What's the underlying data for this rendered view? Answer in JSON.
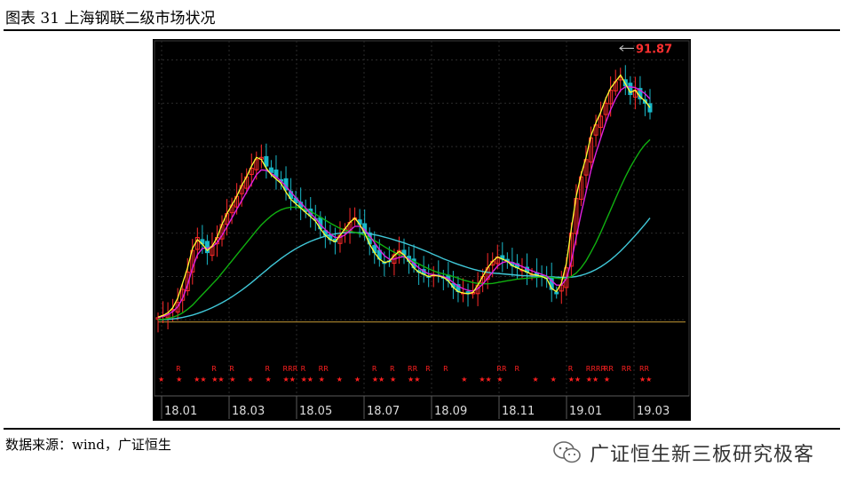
{
  "figure": {
    "label": "图表 31 上海钢联二级市场状况"
  },
  "source": {
    "text": "数据来源：wind，广证恒生"
  },
  "watermark": {
    "text": "广证恒生新三板研究极客",
    "icon": "wechat-icon"
  },
  "chart_data": {
    "type": "candlestick",
    "x_ticks": [
      "18.01",
      "18.03",
      "18.05",
      "18.07",
      "18.09",
      "18.11",
      "19.01",
      "19.03"
    ],
    "annotation": {
      "label": "91.87",
      "value": 91.87
    },
    "y_range": [
      28,
      94
    ],
    "background": "#000000",
    "colors": {
      "up": "#ff2a2a",
      "down": "#19b8c8",
      "ma_fast": "#ffff33",
      "ma_mid": "#e020e0",
      "ma_slow": "#10b010",
      "ma_long": "#40c8d8",
      "baseline": "#b08a30",
      "marker": "#ff2020"
    },
    "closes": [
      30.5,
      31.0,
      31.5,
      32.4,
      34.0,
      37.0,
      41.0,
      46.0,
      49.0,
      47.5,
      45.5,
      47.0,
      49.0,
      52.0,
      54.5,
      56.5,
      58.5,
      61.0,
      63.0,
      65.0,
      67.0,
      67.5,
      65.5,
      64.0,
      63.0,
      62.0,
      60.0,
      58.0,
      57.0,
      56.0,
      55.0,
      54.0,
      53.0,
      51.0,
      49.5,
      48.5,
      48.0,
      49.5,
      51.0,
      52.5,
      53.5,
      52.0,
      50.0,
      47.5,
      45.5,
      44.0,
      43.0,
      43.5,
      45.0,
      46.0,
      45.0,
      43.5,
      42.0,
      41.0,
      40.5,
      40.0,
      40.3,
      40.1,
      39.8,
      39.0,
      37.5,
      36.5,
      36.2,
      36.0,
      36.3,
      38.0,
      40.0,
      42.0,
      43.5,
      44.5,
      44.0,
      43.5,
      42.5,
      42.0,
      41.5,
      41.0,
      40.5,
      40.3,
      40.0,
      39.5,
      37.0,
      36.0,
      38.0,
      42.0,
      50.0,
      58.0,
      63.0,
      67.0,
      72.0,
      75.0,
      77.0,
      80.0,
      83.0,
      85.0,
      86.0,
      84.0,
      82.0,
      83.0,
      81.0,
      80.0,
      78.0
    ],
    "ma_fast": [
      30.6,
      31.0,
      31.6,
      32.8,
      35.0,
      38.5,
      42.0,
      46.5,
      48.5,
      47.5,
      46.0,
      47.0,
      49.0,
      52.0,
      54.5,
      56.5,
      58.5,
      61.0,
      63.0,
      65.5,
      67.5,
      67.0,
      65.0,
      63.5,
      62.5,
      61.5,
      59.5,
      57.8,
      56.8,
      55.8,
      54.8,
      53.8,
      52.8,
      51.0,
      49.5,
      48.5,
      48.0,
      49.5,
      51.0,
      52.5,
      53.5,
      52.0,
      50.0,
      47.5,
      45.5,
      44.0,
      43.2,
      43.5,
      44.8,
      45.8,
      45.0,
      43.5,
      42.0,
      41.0,
      40.5,
      40.0,
      40.3,
      40.1,
      39.8,
      39.0,
      37.5,
      36.5,
      36.2,
      36.0,
      36.3,
      38.0,
      40.0,
      42.0,
      43.5,
      44.5,
      44.0,
      43.5,
      42.5,
      42.0,
      41.5,
      41.0,
      40.5,
      40.3,
      40.0,
      39.5,
      37.2,
      36.5,
      38.5,
      43.0,
      51.0,
      58.5,
      63.5,
      67.5,
      72.5,
      75.5,
      78.0,
      81.0,
      83.5,
      85.0,
      86.5,
      84.5,
      82.5,
      83.0,
      81.5,
      80.5,
      79.0
    ],
    "ma_mid": [
      30.5,
      30.8,
      31.2,
      31.9,
      33.0,
      35.0,
      38.0,
      42.0,
      45.0,
      46.5,
      46.5,
      46.8,
      47.8,
      49.5,
      51.5,
      53.5,
      55.5,
      57.5,
      59.5,
      61.5,
      63.5,
      64.6,
      64.5,
      63.8,
      63.0,
      62.0,
      60.8,
      59.5,
      58.2,
      57.0,
      55.8,
      54.6,
      53.4,
      52.0,
      50.8,
      49.8,
      49.0,
      49.0,
      49.6,
      50.6,
      51.6,
      51.6,
      50.8,
      49.4,
      47.8,
      46.2,
      44.8,
      44.0,
      44.0,
      44.4,
      44.6,
      44.0,
      43.0,
      42.0,
      41.2,
      40.6,
      40.4,
      40.2,
      40.0,
      39.5,
      38.6,
      37.8,
      37.2,
      36.8,
      36.6,
      37.2,
      38.2,
      39.6,
      41.0,
      42.4,
      43.2,
      43.5,
      43.2,
      42.8,
      42.3,
      41.8,
      41.3,
      40.9,
      40.5,
      40.1,
      39.0,
      38.0,
      38.0,
      39.5,
      43.5,
      49.0,
      54.5,
      59.5,
      64.5,
      68.5,
      72.0,
      75.5,
      78.5,
      81.0,
      83.0,
      83.8,
      83.8,
      83.6,
      83.0,
      82.2,
      81.0
    ],
    "ma_slow": [
      30.0,
      30.1,
      30.3,
      30.6,
      31.0,
      31.6,
      32.4,
      33.4,
      34.6,
      35.8,
      37.0,
      38.2,
      39.4,
      40.8,
      42.2,
      43.6,
      45.0,
      46.4,
      47.8,
      49.2,
      50.6,
      51.9,
      53.0,
      54.0,
      54.8,
      55.4,
      55.8,
      56.0,
      56.0,
      55.8,
      55.5,
      55.0,
      54.4,
      53.7,
      53.0,
      52.3,
      51.7,
      51.1,
      50.7,
      50.4,
      50.2,
      49.9,
      49.5,
      48.9,
      48.3,
      47.6,
      46.9,
      46.2,
      45.6,
      45.0,
      44.5,
      44.0,
      43.5,
      42.9,
      42.3,
      41.8,
      41.3,
      40.9,
      40.6,
      40.3,
      40.0,
      39.6,
      39.2,
      38.9,
      38.6,
      38.4,
      38.3,
      38.3,
      38.4,
      38.6,
      38.8,
      39.0,
      39.2,
      39.4,
      39.5,
      39.6,
      39.7,
      39.8,
      39.9,
      39.9,
      39.8,
      39.6,
      39.5,
      39.6,
      40.0,
      40.8,
      42.0,
      43.6,
      45.6,
      47.8,
      50.2,
      52.8,
      55.4,
      58.0,
      60.6,
      63.0,
      65.2,
      67.2,
      69.0,
      70.5,
      71.6
    ],
    "ma_long": [
      30.0,
      30.05,
      30.1,
      30.2,
      30.35,
      30.55,
      30.8,
      31.1,
      31.45,
      31.85,
      32.3,
      32.8,
      33.35,
      33.95,
      34.6,
      35.3,
      36.05,
      36.85,
      37.7,
      38.6,
      39.55,
      40.5,
      41.45,
      42.4,
      43.3,
      44.15,
      44.95,
      45.7,
      46.4,
      47.05,
      47.6,
      48.1,
      48.55,
      48.95,
      49.3,
      49.6,
      49.85,
      50.0,
      50.1,
      50.15,
      50.15,
      50.1,
      50.0,
      49.85,
      49.65,
      49.4,
      49.1,
      48.8,
      48.45,
      48.1,
      47.75,
      47.35,
      46.95,
      46.5,
      46.05,
      45.6,
      45.1,
      44.6,
      44.1,
      43.65,
      43.2,
      42.8,
      42.4,
      42.05,
      41.7,
      41.4,
      41.15,
      40.95,
      40.8,
      40.7,
      40.6,
      40.5,
      40.4,
      40.3,
      40.2,
      40.15,
      40.1,
      40.05,
      40.0,
      39.95,
      39.9,
      39.85,
      39.8,
      39.8,
      39.85,
      40.0,
      40.25,
      40.6,
      41.05,
      41.6,
      42.25,
      43.0,
      43.85,
      44.8,
      45.85,
      47.0,
      48.2,
      49.45,
      50.75,
      52.1,
      53.5
    ],
    "baseline_value": 29.5,
    "markers": [
      {
        "top": "",
        "bottom": "★"
      },
      {
        "top": "R",
        "bottom": "★"
      },
      {
        "top": "",
        "bottom": "★★"
      },
      {
        "top": "R",
        "bottom": "★★"
      },
      {
        "top": "R",
        "bottom": "★"
      },
      {
        "top": "",
        "bottom": "★"
      },
      {
        "top": "R",
        "bottom": "★"
      },
      {
        "top": "RRR",
        "bottom": "★★"
      },
      {
        "top": "R",
        "bottom": "★★"
      },
      {
        "top": "RR",
        "bottom": "★"
      },
      {
        "top": "",
        "bottom": "★"
      },
      {
        "top": "",
        "bottom": "★"
      },
      {
        "top": "R",
        "bottom": "★★"
      },
      {
        "top": "R",
        "bottom": "★"
      },
      {
        "top": "RR",
        "bottom": "★★"
      },
      {
        "top": "R",
        "bottom": ""
      },
      {
        "top": "R",
        "bottom": ""
      },
      {
        "top": "",
        "bottom": "★"
      },
      {
        "top": "",
        "bottom": "★★"
      },
      {
        "top": "RR",
        "bottom": "★"
      },
      {
        "top": "R",
        "bottom": ""
      },
      {
        "top": "",
        "bottom": "★"
      },
      {
        "top": "",
        "bottom": "★"
      },
      {
        "top": "R",
        "bottom": "★★"
      },
      {
        "top": "RRRR",
        "bottom": "★★"
      },
      {
        "top": "RR",
        "bottom": "★"
      },
      {
        "top": "RR",
        "bottom": ""
      },
      {
        "top": "RR",
        "bottom": "★★"
      }
    ]
  }
}
